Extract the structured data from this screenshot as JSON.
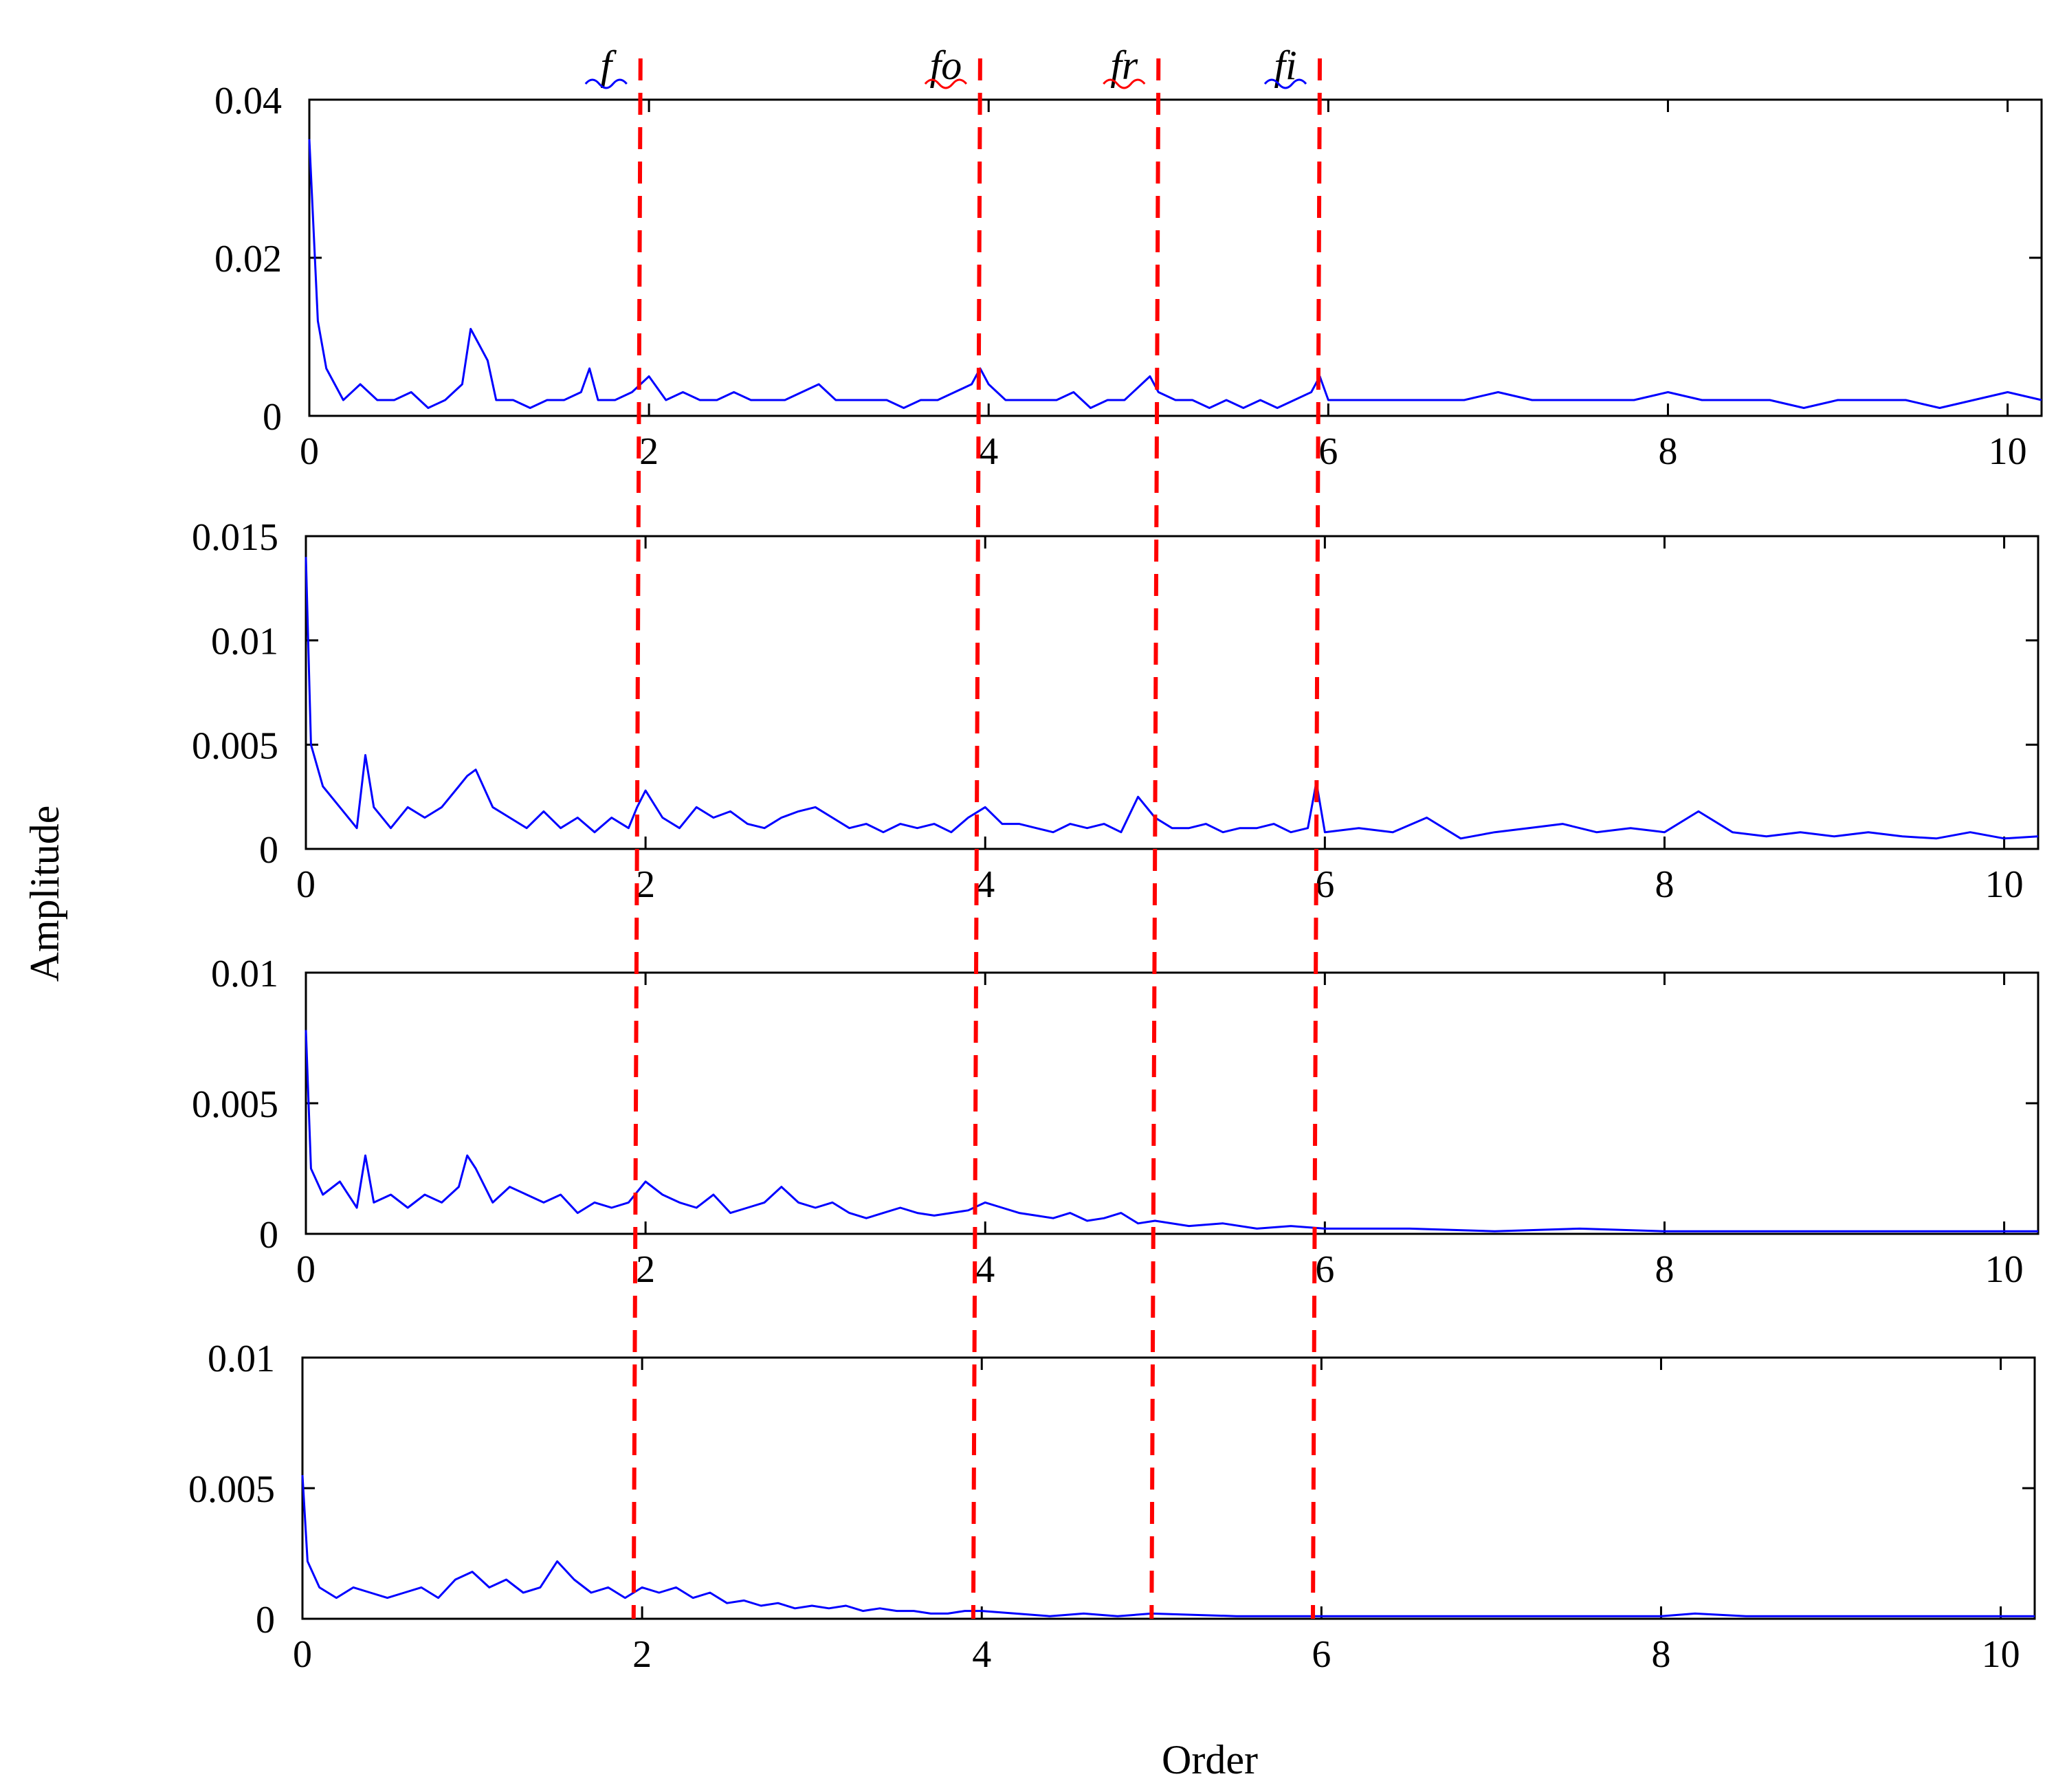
{
  "figure": {
    "ylabel": "Amplitude",
    "xlabel": "Order",
    "colors": {
      "signal": "#0000ff",
      "marker": "#ff0000",
      "frame": "#000000"
    }
  },
  "markers": [
    {
      "label": "f",
      "order": 1.95
    },
    {
      "label": "fo",
      "order": 3.95
    },
    {
      "label": "fr",
      "order": 5.0
    },
    {
      "label": "fi",
      "order": 5.95
    }
  ],
  "chart_data": [
    {
      "type": "line",
      "title": "",
      "xlabel": "",
      "ylabel": "",
      "xlim": [
        0,
        10.2
      ],
      "ylim": [
        0,
        0.04
      ],
      "xticks": [
        "0",
        "2",
        "4",
        "6",
        "8",
        "10"
      ],
      "yticks": [
        "0",
        "0.02",
        "0.04"
      ],
      "grid": false,
      "series": [
        {
          "x": [
            0,
            0.05,
            0.1,
            0.2,
            0.3,
            0.4,
            0.5,
            0.6,
            0.7,
            0.8,
            0.9,
            0.95,
            1.0,
            1.05,
            1.1,
            1.2,
            1.3,
            1.4,
            1.5,
            1.6,
            1.65,
            1.7,
            1.8,
            1.9,
            1.95,
            2.0,
            2.1,
            2.2,
            2.3,
            2.4,
            2.5,
            2.6,
            2.7,
            2.8,
            2.9,
            3.0,
            3.1,
            3.2,
            3.3,
            3.4,
            3.5,
            3.6,
            3.7,
            3.8,
            3.9,
            3.95,
            4.0,
            4.1,
            4.2,
            4.3,
            4.4,
            4.5,
            4.6,
            4.7,
            4.8,
            4.9,
            4.95,
            5.0,
            5.1,
            5.2,
            5.3,
            5.4,
            5.5,
            5.6,
            5.7,
            5.8,
            5.9,
            5.95,
            6.0,
            6.2,
            6.4,
            6.6,
            6.8,
            7.0,
            7.2,
            7.4,
            7.6,
            7.8,
            8.0,
            8.2,
            8.4,
            8.6,
            8.8,
            9.0,
            9.2,
            9.4,
            9.6,
            9.8,
            10.0,
            10.2
          ],
          "values": [
            0.035,
            0.012,
            0.006,
            0.002,
            0.004,
            0.002,
            0.002,
            0.003,
            0.001,
            0.002,
            0.004,
            0.011,
            0.009,
            0.007,
            0.002,
            0.002,
            0.001,
            0.002,
            0.002,
            0.003,
            0.006,
            0.002,
            0.002,
            0.003,
            0.004,
            0.005,
            0.002,
            0.003,
            0.002,
            0.002,
            0.003,
            0.002,
            0.002,
            0.002,
            0.003,
            0.004,
            0.002,
            0.002,
            0.002,
            0.002,
            0.001,
            0.002,
            0.002,
            0.003,
            0.004,
            0.006,
            0.004,
            0.002,
            0.002,
            0.002,
            0.002,
            0.003,
            0.001,
            0.002,
            0.002,
            0.004,
            0.005,
            0.003,
            0.002,
            0.002,
            0.001,
            0.002,
            0.001,
            0.002,
            0.001,
            0.002,
            0.003,
            0.005,
            0.002,
            0.002,
            0.002,
            0.002,
            0.002,
            0.003,
            0.002,
            0.002,
            0.002,
            0.002,
            0.003,
            0.002,
            0.002,
            0.002,
            0.001,
            0.002,
            0.002,
            0.002,
            0.001,
            0.002,
            0.003,
            0.002
          ]
        }
      ]
    },
    {
      "type": "line",
      "title": "",
      "xlabel": "",
      "ylabel": "",
      "xlim": [
        0,
        10.2
      ],
      "ylim": [
        0,
        0.015
      ],
      "xticks": [
        "0",
        "2",
        "4",
        "6",
        "8",
        "10"
      ],
      "yticks": [
        "0",
        "0.005",
        "0.01",
        "0.015"
      ],
      "grid": false,
      "series": [
        {
          "x": [
            0,
            0.03,
            0.1,
            0.2,
            0.3,
            0.35,
            0.4,
            0.5,
            0.6,
            0.7,
            0.8,
            0.9,
            0.95,
            1.0,
            1.1,
            1.2,
            1.3,
            1.4,
            1.5,
            1.6,
            1.7,
            1.8,
            1.9,
            1.95,
            2.0,
            2.1,
            2.2,
            2.3,
            2.4,
            2.5,
            2.6,
            2.7,
            2.8,
            2.9,
            3.0,
            3.1,
            3.2,
            3.3,
            3.4,
            3.5,
            3.6,
            3.7,
            3.8,
            3.9,
            4.0,
            4.1,
            4.2,
            4.3,
            4.4,
            4.5,
            4.6,
            4.7,
            4.8,
            4.9,
            5.0,
            5.1,
            5.2,
            5.3,
            5.4,
            5.5,
            5.6,
            5.7,
            5.8,
            5.9,
            5.95,
            6.0,
            6.2,
            6.4,
            6.6,
            6.8,
            7.0,
            7.2,
            7.4,
            7.6,
            7.8,
            8.0,
            8.2,
            8.4,
            8.6,
            8.8,
            9.0,
            9.2,
            9.4,
            9.6,
            9.8,
            10.0,
            10.2
          ],
          "values": [
            0.014,
            0.005,
            0.003,
            0.002,
            0.001,
            0.0045,
            0.002,
            0.001,
            0.002,
            0.0015,
            0.002,
            0.003,
            0.0035,
            0.0038,
            0.002,
            0.0015,
            0.001,
            0.0018,
            0.001,
            0.0015,
            0.0008,
            0.0015,
            0.001,
            0.002,
            0.0028,
            0.0015,
            0.001,
            0.002,
            0.0015,
            0.0018,
            0.0012,
            0.001,
            0.0015,
            0.0018,
            0.002,
            0.0015,
            0.001,
            0.0012,
            0.0008,
            0.0012,
            0.001,
            0.0012,
            0.0008,
            0.0015,
            0.002,
            0.0012,
            0.0012,
            0.001,
            0.0008,
            0.0012,
            0.001,
            0.0012,
            0.0008,
            0.0025,
            0.0015,
            0.001,
            0.001,
            0.0012,
            0.0008,
            0.001,
            0.001,
            0.0012,
            0.0008,
            0.001,
            0.0032,
            0.0008,
            0.001,
            0.0008,
            0.0015,
            0.0005,
            0.0008,
            0.001,
            0.0012,
            0.0008,
            0.001,
            0.0008,
            0.0018,
            0.0008,
            0.0006,
            0.0008,
            0.0006,
            0.0008,
            0.0006,
            0.0005,
            0.0008,
            0.0005,
            0.0006
          ]
        }
      ]
    },
    {
      "type": "line",
      "title": "",
      "xlabel": "",
      "ylabel": "",
      "xlim": [
        0,
        10.2
      ],
      "ylim": [
        0,
        0.01
      ],
      "xticks": [
        "0",
        "2",
        "4",
        "6",
        "8",
        "10"
      ],
      "yticks": [
        "0",
        "0.005",
        "0.01"
      ],
      "grid": false,
      "series": [
        {
          "x": [
            0,
            0.03,
            0.1,
            0.2,
            0.3,
            0.35,
            0.4,
            0.5,
            0.6,
            0.7,
            0.8,
            0.9,
            0.95,
            1.0,
            1.1,
            1.2,
            1.3,
            1.4,
            1.5,
            1.6,
            1.7,
            1.8,
            1.9,
            2.0,
            2.1,
            2.2,
            2.3,
            2.4,
            2.5,
            2.6,
            2.7,
            2.8,
            2.9,
            3.0,
            3.1,
            3.2,
            3.3,
            3.4,
            3.5,
            3.6,
            3.7,
            3.8,
            3.9,
            4.0,
            4.1,
            4.2,
            4.3,
            4.4,
            4.5,
            4.6,
            4.7,
            4.8,
            4.9,
            5.0,
            5.2,
            5.4,
            5.6,
            5.8,
            6.0,
            6.5,
            7.0,
            7.5,
            8.0,
            8.5,
            9.0,
            9.5,
            10.0,
            10.2
          ],
          "values": [
            0.0078,
            0.0025,
            0.0015,
            0.002,
            0.001,
            0.003,
            0.0012,
            0.0015,
            0.001,
            0.0015,
            0.0012,
            0.0018,
            0.003,
            0.0025,
            0.0012,
            0.0018,
            0.0015,
            0.0012,
            0.0015,
            0.0008,
            0.0012,
            0.001,
            0.0012,
            0.002,
            0.0015,
            0.0012,
            0.001,
            0.0015,
            0.0008,
            0.001,
            0.0012,
            0.0018,
            0.0012,
            0.001,
            0.0012,
            0.0008,
            0.0006,
            0.0008,
            0.001,
            0.0008,
            0.0007,
            0.0008,
            0.0009,
            0.0012,
            0.001,
            0.0008,
            0.0007,
            0.0006,
            0.0008,
            0.0005,
            0.0006,
            0.0008,
            0.0004,
            0.0005,
            0.0003,
            0.0004,
            0.0002,
            0.0003,
            0.0002,
            0.0002,
            0.0001,
            0.0002,
            0.0001,
            0.0001,
            0.0001,
            0.0001,
            0.0001,
            0.0001
          ]
        }
      ]
    },
    {
      "type": "line",
      "title": "",
      "xlabel": "",
      "ylabel": "",
      "xlim": [
        0,
        10.2
      ],
      "ylim": [
        0,
        0.01
      ],
      "xticks": [
        "0",
        "2",
        "4",
        "6",
        "8",
        "10"
      ],
      "yticks": [
        "0",
        "0.005",
        "0.01"
      ],
      "grid": false,
      "series": [
        {
          "x": [
            0,
            0.03,
            0.1,
            0.2,
            0.3,
            0.4,
            0.5,
            0.6,
            0.7,
            0.8,
            0.9,
            1.0,
            1.1,
            1.2,
            1.3,
            1.4,
            1.5,
            1.6,
            1.7,
            1.8,
            1.9,
            2.0,
            2.1,
            2.2,
            2.3,
            2.4,
            2.5,
            2.6,
            2.7,
            2.8,
            2.9,
            3.0,
            3.1,
            3.2,
            3.3,
            3.4,
            3.5,
            3.6,
            3.7,
            3.8,
            3.9,
            4.0,
            4.2,
            4.4,
            4.6,
            4.8,
            5.0,
            5.5,
            6.0,
            6.5,
            7.0,
            7.5,
            8.0,
            8.2,
            8.5,
            9.0,
            9.5,
            10.0,
            10.2
          ],
          "values": [
            0.0055,
            0.0022,
            0.0012,
            0.0008,
            0.0012,
            0.001,
            0.0008,
            0.001,
            0.0012,
            0.0008,
            0.0015,
            0.0018,
            0.0012,
            0.0015,
            0.001,
            0.0012,
            0.0022,
            0.0015,
            0.001,
            0.0012,
            0.0008,
            0.0012,
            0.001,
            0.0012,
            0.0008,
            0.001,
            0.0006,
            0.0007,
            0.0005,
            0.0006,
            0.0004,
            0.0005,
            0.0004,
            0.0005,
            0.0003,
            0.0004,
            0.0003,
            0.0003,
            0.0002,
            0.0002,
            0.0003,
            0.0003,
            0.0002,
            0.0001,
            0.0002,
            0.0001,
            0.0002,
            0.0001,
            0.0001,
            0.0001,
            0.0001,
            0.0001,
            0.0001,
            0.0002,
            0.0001,
            0.0001,
            0.0001,
            0.0001,
            0.0001
          ]
        }
      ]
    }
  ]
}
